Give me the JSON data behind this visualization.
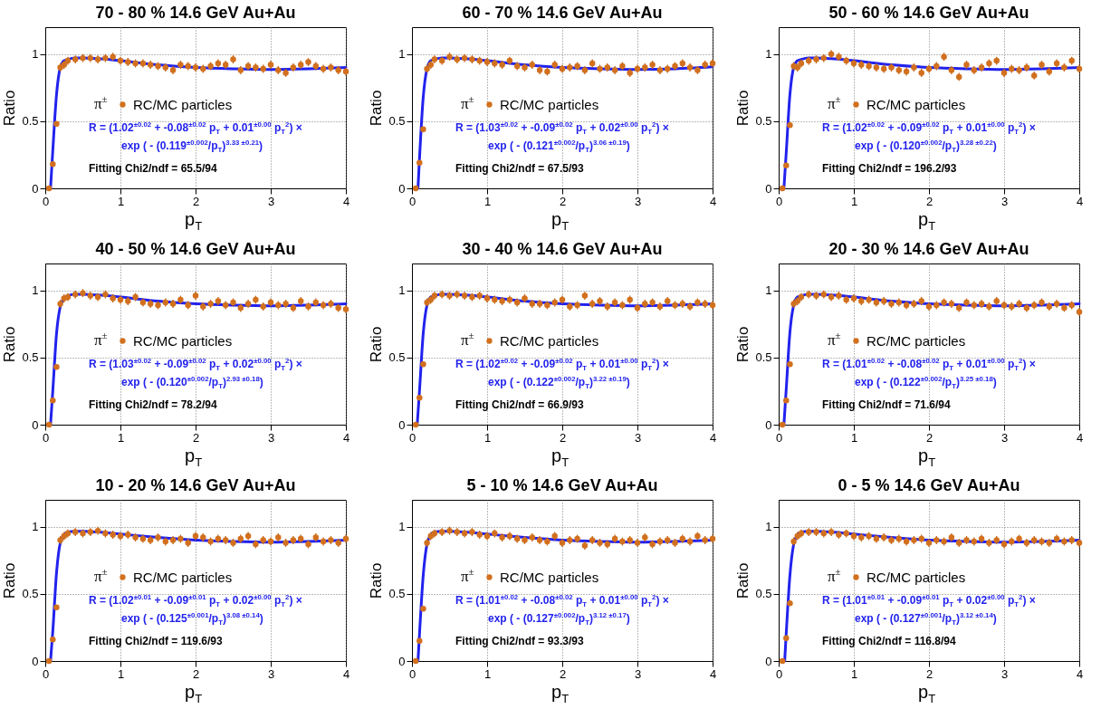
{
  "chart_data": [
    {
      "type": "scatter",
      "title": "70 - 80 % 14.6 GeV Au+Au",
      "xlabel": "p$_{T}$",
      "ylabel": "Ratio",
      "legend_title": "π$^{±}$",
      "legend": "left",
      "grid": true,
      "xlim": [
        0,
        4
      ],
      "ylim": [
        0,
        1.2
      ],
      "xticks": [
        0,
        1,
        2,
        3,
        4
      ],
      "yticks": [
        0,
        0.5,
        1
      ],
      "x": [
        0.05,
        0.1,
        0.15,
        0.2,
        0.25,
        0.3,
        0.4,
        0.5,
        0.6,
        0.7,
        0.8,
        0.9,
        1.0,
        1.1,
        1.2,
        1.3,
        1.4,
        1.5,
        1.6,
        1.7,
        1.8,
        1.9,
        2.0,
        2.1,
        2.2,
        2.3,
        2.4,
        2.5,
        2.6,
        2.7,
        2.8,
        2.9,
        3.0,
        3.1,
        3.2,
        3.3,
        3.4,
        3.5,
        3.6,
        3.7,
        3.8,
        3.9,
        4.0
      ],
      "annotations": [
        "R = (1.02$^{±0.02}$ + -0.08$^{±0.02}$ p$_{T}$ + 0.01$^{±0.00}$ p$_{T}$$^{2}$) ×",
        "exp ( - (0.119$^{±0.002}$/p$_{T}$)$^{3.33 ±0.21}$)",
        "Fitting Chi2/ndf = 65.5/94"
      ],
      "series": [
        {
          "name": "RC/MC particles",
          "color": "#d2701e",
          "marker": "circle",
          "values": [
            0,
            0.18,
            0.48,
            0.9,
            0.92,
            0.95,
            0.96,
            0.97,
            0.97,
            0.96,
            0.97,
            0.98,
            0.95,
            0.94,
            0.93,
            0.93,
            0.92,
            0.91,
            0.9,
            0.88,
            0.92,
            0.91,
            0.9,
            0.89,
            0.91,
            0.93,
            0.92,
            0.96,
            0.88,
            0.91,
            0.9,
            0.89,
            0.92,
            0.88,
            0.86,
            0.9,
            0.92,
            0.94,
            0.91,
            0.89,
            0.9,
            0.88,
            0.87
          ],
          "errors": [
            null,
            null,
            null,
            0.03,
            0.03,
            0.03,
            0.03,
            0.03,
            0.03,
            0.03,
            0.03,
            0.03,
            0.03,
            0.03,
            0.03,
            0.03,
            0.03,
            0.03,
            0.03,
            0.03,
            0.03,
            0.03,
            0.03,
            0.03,
            0.03,
            0.03,
            0.03,
            0.03,
            0.03,
            0.03,
            0.03,
            0.03,
            0.03,
            0.03,
            0.03,
            0.03,
            0.03,
            0.03,
            0.03,
            0.03,
            0.03,
            0.03,
            0.03
          ]
        },
        {
          "type": "line",
          "color": "#2222ee",
          "marker": "none",
          "x": [
            0.07,
            0.1,
            0.15,
            0.2,
            0.25,
            0.3,
            0.4,
            0.5,
            0.7,
            1,
            1.5,
            2,
            2.5,
            3,
            3.5,
            4
          ],
          "values": [
            0,
            0.28,
            0.7,
            0.9,
            0.95,
            0.96,
            0.97,
            0.97,
            0.965,
            0.95,
            0.92,
            0.9,
            0.89,
            0.885,
            0.89,
            0.9
          ]
        }
      ]
    },
    {
      "type": "scatter",
      "title": "60 - 70 % 14.6 GeV Au+Au",
      "xlabel": "p$_{T}$",
      "ylabel": "Ratio",
      "legend_title": "π$^{±}$",
      "legend": "left",
      "grid": true,
      "xlim": [
        0,
        4
      ],
      "ylim": [
        0,
        1.2
      ],
      "xticks": [
        0,
        1,
        2,
        3,
        4
      ],
      "yticks": [
        0,
        0.5,
        1
      ],
      "x": [
        0.05,
        0.1,
        0.15,
        0.2,
        0.25,
        0.3,
        0.4,
        0.5,
        0.6,
        0.7,
        0.8,
        0.9,
        1.0,
        1.1,
        1.2,
        1.3,
        1.4,
        1.5,
        1.6,
        1.7,
        1.8,
        1.9,
        2.0,
        2.1,
        2.2,
        2.3,
        2.4,
        2.5,
        2.6,
        2.7,
        2.8,
        2.9,
        3.0,
        3.1,
        3.2,
        3.3,
        3.4,
        3.5,
        3.6,
        3.7,
        3.8,
        3.9,
        4.0
      ],
      "annotations": [
        "R = (1.03$^{±0.02}$ + -0.09$^{±0.02}$ p$_{T}$ + 0.02$^{±0.00}$ p$_{T}$$^{2}$) ×",
        "exp ( - (0.121$^{±0.002}$/p$_{T}$)$^{3.06 ±0.19}$)",
        "Fitting Chi2/ndf = 67.5/93"
      ],
      "series": [
        {
          "name": "RC/MC particles",
          "color": "#d2701e",
          "marker": "circle",
          "values": [
            0,
            0.19,
            0.44,
            0.89,
            0.92,
            0.96,
            0.95,
            0.98,
            0.96,
            0.97,
            0.96,
            0.95,
            0.94,
            0.93,
            0.92,
            0.95,
            0.91,
            0.9,
            0.92,
            0.88,
            0.87,
            0.92,
            0.89,
            0.9,
            0.91,
            0.88,
            0.93,
            0.89,
            0.9,
            0.88,
            0.91,
            0.86,
            0.89,
            0.9,
            0.92,
            0.88,
            0.89,
            0.91,
            0.93,
            0.9,
            0.88,
            0.92,
            0.93
          ],
          "errors": [
            null,
            null,
            null,
            0.03,
            0.03,
            0.03,
            0.03,
            0.03,
            0.03,
            0.03,
            0.03,
            0.03,
            0.03,
            0.03,
            0.03,
            0.03,
            0.03,
            0.03,
            0.03,
            0.03,
            0.03,
            0.03,
            0.03,
            0.03,
            0.03,
            0.03,
            0.03,
            0.03,
            0.03,
            0.03,
            0.03,
            0.03,
            0.03,
            0.03,
            0.03,
            0.03,
            0.03,
            0.03,
            0.03,
            0.03,
            0.03,
            0.03,
            0.03
          ]
        },
        {
          "type": "line",
          "color": "#2222ee",
          "marker": "none",
          "x": [
            0.08,
            0.1,
            0.15,
            0.2,
            0.25,
            0.3,
            0.4,
            0.5,
            0.7,
            1,
            1.5,
            2,
            2.5,
            3,
            3.5,
            4
          ],
          "values": [
            0,
            0.22,
            0.68,
            0.89,
            0.95,
            0.96,
            0.97,
            0.97,
            0.965,
            0.95,
            0.92,
            0.9,
            0.89,
            0.885,
            0.89,
            0.905
          ]
        }
      ]
    },
    {
      "type": "scatter",
      "title": "50 - 60 % 14.6 GeV Au+Au",
      "xlabel": "p$_{T}$",
      "ylabel": "Ratio",
      "legend_title": "π$^{±}$",
      "legend": "left",
      "grid": true,
      "xlim": [
        0,
        4
      ],
      "ylim": [
        0,
        1.2
      ],
      "xticks": [
        0,
        1,
        2,
        3,
        4
      ],
      "yticks": [
        0,
        0.5,
        1
      ],
      "x": [
        0.05,
        0.1,
        0.15,
        0.2,
        0.25,
        0.3,
        0.4,
        0.5,
        0.6,
        0.7,
        0.8,
        0.9,
        1.0,
        1.1,
        1.2,
        1.3,
        1.4,
        1.5,
        1.6,
        1.7,
        1.8,
        1.9,
        2.0,
        2.1,
        2.2,
        2.3,
        2.4,
        2.5,
        2.6,
        2.7,
        2.8,
        2.9,
        3.0,
        3.1,
        3.2,
        3.3,
        3.4,
        3.5,
        3.6,
        3.7,
        3.8,
        3.9,
        4.0
      ],
      "annotations": [
        "R = (1.02$^{±0.02}$ + -0.09$^{±0.02}$ p$_{T}$ + 0.01$^{±0.00}$ p$_{T}$$^{2}$) ×",
        "exp ( - (0.120$^{±0.002}$/p$_{T}$)$^{3.28 ±0.22}$)",
        "Fitting Chi2/ndf = 196.2/93"
      ],
      "series": [
        {
          "name": "RC/MC particles",
          "color": "#d2701e",
          "marker": "circle",
          "values": [
            0,
            0.17,
            0.47,
            0.91,
            0.9,
            0.93,
            0.95,
            0.96,
            0.97,
            1.0,
            0.98,
            0.95,
            0.93,
            0.92,
            0.91,
            0.9,
            0.89,
            0.9,
            0.88,
            0.87,
            0.9,
            0.86,
            0.89,
            0.91,
            0.98,
            0.88,
            0.83,
            0.92,
            0.88,
            0.9,
            0.93,
            0.95,
            0.86,
            0.89,
            0.88,
            0.9,
            0.84,
            0.92,
            0.87,
            0.93,
            0.9,
            0.95,
            0.89
          ],
          "errors": [
            null,
            null,
            null,
            0.03,
            0.03,
            0.03,
            0.03,
            0.03,
            0.03,
            0.03,
            0.03,
            0.03,
            0.03,
            0.03,
            0.03,
            0.03,
            0.03,
            0.03,
            0.03,
            0.03,
            0.03,
            0.03,
            0.03,
            0.03,
            0.03,
            0.03,
            0.03,
            0.03,
            0.03,
            0.03,
            0.03,
            0.03,
            0.03,
            0.03,
            0.03,
            0.03,
            0.03,
            0.03,
            0.03,
            0.03,
            0.03,
            0.03,
            0.03
          ]
        },
        {
          "type": "line",
          "color": "#2222ee",
          "marker": "none",
          "x": [
            0.07,
            0.1,
            0.15,
            0.2,
            0.25,
            0.3,
            0.4,
            0.5,
            0.7,
            1,
            1.5,
            2,
            2.5,
            3,
            3.5,
            4
          ],
          "values": [
            0,
            0.26,
            0.7,
            0.9,
            0.95,
            0.96,
            0.97,
            0.97,
            0.965,
            0.95,
            0.92,
            0.9,
            0.89,
            0.885,
            0.89,
            0.9
          ]
        }
      ]
    },
    {
      "type": "scatter",
      "title": "40 - 50 % 14.6 GeV Au+Au",
      "xlabel": "p$_{T}$",
      "ylabel": "Ratio",
      "legend_title": "π$^{±}$",
      "legend": "left",
      "grid": true,
      "xlim": [
        0,
        4
      ],
      "ylim": [
        0,
        1.2
      ],
      "xticks": [
        0,
        1,
        2,
        3,
        4
      ],
      "yticks": [
        0,
        0.5,
        1
      ],
      "x": [
        0.05,
        0.1,
        0.15,
        0.2,
        0.25,
        0.3,
        0.4,
        0.5,
        0.6,
        0.7,
        0.8,
        0.9,
        1.0,
        1.1,
        1.2,
        1.3,
        1.4,
        1.5,
        1.6,
        1.7,
        1.8,
        1.9,
        2.0,
        2.1,
        2.2,
        2.3,
        2.4,
        2.5,
        2.6,
        2.7,
        2.8,
        2.9,
        3.0,
        3.1,
        3.2,
        3.3,
        3.4,
        3.5,
        3.6,
        3.7,
        3.8,
        3.9,
        4.0
      ],
      "annotations": [
        "R = (1.03$^{±0.02}$ + -0.09$^{±0.02}$ p$_{T}$ + 0.02$^{±0.00}$ p$_{T}$$^{2}$) ×",
        "exp ( - (0.120$^{±0.002}$/p$_{T}$)$^{2.93 ±0.18}$)",
        "Fitting Chi2/ndf = 78.2/94"
      ],
      "series": [
        {
          "name": "RC/MC particles",
          "color": "#d2701e",
          "marker": "circle",
          "values": [
            0,
            0.18,
            0.43,
            0.9,
            0.94,
            0.95,
            0.97,
            0.98,
            0.96,
            0.95,
            0.97,
            0.94,
            0.93,
            0.92,
            0.95,
            0.91,
            0.9,
            0.89,
            0.91,
            0.9,
            0.93,
            0.89,
            0.96,
            0.88,
            0.9,
            0.92,
            0.89,
            0.91,
            0.87,
            0.9,
            0.93,
            0.88,
            0.91,
            0.89,
            0.9,
            0.87,
            0.92,
            0.88,
            0.91,
            0.89,
            0.9,
            0.87,
            0.86
          ],
          "errors": [
            null,
            null,
            null,
            0.03,
            0.03,
            0.03,
            0.03,
            0.03,
            0.03,
            0.03,
            0.03,
            0.03,
            0.03,
            0.03,
            0.03,
            0.03,
            0.03,
            0.03,
            0.03,
            0.03,
            0.03,
            0.03,
            0.03,
            0.03,
            0.03,
            0.03,
            0.03,
            0.03,
            0.03,
            0.03,
            0.03,
            0.03,
            0.03,
            0.03,
            0.03,
            0.03,
            0.03,
            0.03,
            0.03,
            0.03,
            0.03,
            0.03,
            0.03
          ]
        },
        {
          "type": "line",
          "color": "#2222ee",
          "marker": "none",
          "x": [
            0.07,
            0.1,
            0.15,
            0.2,
            0.25,
            0.3,
            0.4,
            0.5,
            0.7,
            1,
            1.5,
            2,
            2.5,
            3,
            3.5,
            4
          ],
          "values": [
            0,
            0.25,
            0.68,
            0.88,
            0.94,
            0.96,
            0.97,
            0.97,
            0.965,
            0.95,
            0.92,
            0.9,
            0.89,
            0.885,
            0.89,
            0.9
          ]
        }
      ]
    },
    {
      "type": "scatter",
      "title": "30 - 40 % 14.6 GeV Au+Au",
      "xlabel": "p$_{T}$",
      "ylabel": "Ratio",
      "legend_title": "π$^{±}$",
      "legend": "left",
      "grid": true,
      "xlim": [
        0,
        4
      ],
      "ylim": [
        0,
        1.2
      ],
      "xticks": [
        0,
        1,
        2,
        3,
        4
      ],
      "yticks": [
        0,
        0.5,
        1
      ],
      "x": [
        0.05,
        0.1,
        0.15,
        0.2,
        0.25,
        0.3,
        0.4,
        0.5,
        0.6,
        0.7,
        0.8,
        0.9,
        1.0,
        1.1,
        1.2,
        1.3,
        1.4,
        1.5,
        1.6,
        1.7,
        1.8,
        1.9,
        2.0,
        2.1,
        2.2,
        2.3,
        2.4,
        2.5,
        2.6,
        2.7,
        2.8,
        2.9,
        3.0,
        3.1,
        3.2,
        3.3,
        3.4,
        3.5,
        3.6,
        3.7,
        3.8,
        3.9,
        4.0
      ],
      "annotations": [
        "R = (1.02$^{±0.02}$ + -0.09$^{±0.02}$ p$_{T}$ + 0.01$^{±0.00}$ p$_{T}$$^{2}$) ×",
        "exp ( - (0.122$^{±0.002}$/p$_{T}$)$^{3.22 ±0.19}$)",
        "Fitting Chi2/ndf = 66.9/93"
      ],
      "series": [
        {
          "name": "RC/MC particles",
          "color": "#d2701e",
          "marker": "circle",
          "values": [
            0,
            0.2,
            0.45,
            0.91,
            0.93,
            0.96,
            0.97,
            0.96,
            0.97,
            0.96,
            0.95,
            0.96,
            0.94,
            0.93,
            0.92,
            0.93,
            0.91,
            0.94,
            0.9,
            0.9,
            0.89,
            0.91,
            0.93,
            0.88,
            0.89,
            0.96,
            0.9,
            0.92,
            0.88,
            0.91,
            0.89,
            0.93,
            0.87,
            0.9,
            0.91,
            0.88,
            0.92,
            0.89,
            0.9,
            0.88,
            0.91,
            0.9,
            0.89
          ],
          "errors": [
            null,
            null,
            null,
            0.03,
            0.03,
            0.03,
            0.03,
            0.03,
            0.03,
            0.03,
            0.03,
            0.03,
            0.03,
            0.03,
            0.03,
            0.03,
            0.03,
            0.03,
            0.03,
            0.03,
            0.03,
            0.03,
            0.03,
            0.03,
            0.03,
            0.03,
            0.03,
            0.03,
            0.03,
            0.03,
            0.03,
            0.03,
            0.03,
            0.03,
            0.03,
            0.03,
            0.03,
            0.03,
            0.03,
            0.03,
            0.03,
            0.03,
            0.03
          ]
        },
        {
          "type": "line",
          "color": "#2222ee",
          "marker": "none",
          "x": [
            0.07,
            0.1,
            0.15,
            0.2,
            0.25,
            0.3,
            0.4,
            0.5,
            0.7,
            1,
            1.5,
            2,
            2.5,
            3,
            3.5,
            4
          ],
          "values": [
            0,
            0.25,
            0.68,
            0.89,
            0.95,
            0.96,
            0.97,
            0.97,
            0.965,
            0.95,
            0.92,
            0.9,
            0.89,
            0.885,
            0.89,
            0.9
          ]
        }
      ]
    },
    {
      "type": "scatter",
      "title": "20 - 30 % 14.6 GeV Au+Au",
      "xlabel": "p$_{T}$",
      "ylabel": "Ratio",
      "legend_title": "π$^{±}$",
      "legend": "left",
      "grid": true,
      "xlim": [
        0,
        4
      ],
      "ylim": [
        0,
        1.2
      ],
      "xticks": [
        0,
        1,
        2,
        3,
        4
      ],
      "yticks": [
        0,
        0.5,
        1
      ],
      "x": [
        0.05,
        0.1,
        0.15,
        0.2,
        0.25,
        0.3,
        0.4,
        0.5,
        0.6,
        0.7,
        0.8,
        0.9,
        1.0,
        1.1,
        1.2,
        1.3,
        1.4,
        1.5,
        1.6,
        1.7,
        1.8,
        1.9,
        2.0,
        2.1,
        2.2,
        2.3,
        2.4,
        2.5,
        2.6,
        2.7,
        2.8,
        2.9,
        3.0,
        3.1,
        3.2,
        3.3,
        3.4,
        3.5,
        3.6,
        3.7,
        3.8,
        3.9,
        4.0
      ],
      "annotations": [
        "R = (1.01$^{±0.02}$ + -0.08$^{±0.02}$ p$_{T}$ + 0.01$^{±0.00}$ p$_{T}$$^{2}$) ×",
        "exp ( - (0.122$^{±0.002}$/p$_{T}$)$^{3.25 ±0.18}$)",
        "Fitting Chi2/ndf = 71.6/94"
      ],
      "series": [
        {
          "name": "RC/MC particles",
          "color": "#d2701e",
          "marker": "circle",
          "values": [
            0,
            0.18,
            0.45,
            0.9,
            0.92,
            0.95,
            0.97,
            0.96,
            0.97,
            0.95,
            0.96,
            0.93,
            0.94,
            0.92,
            0.93,
            0.91,
            0.92,
            0.9,
            0.91,
            0.89,
            0.9,
            0.92,
            0.88,
            0.89,
            0.91,
            0.9,
            0.87,
            0.91,
            0.89,
            0.9,
            0.88,
            0.92,
            0.89,
            0.88,
            0.9,
            0.87,
            0.89,
            0.91,
            0.88,
            0.9,
            0.87,
            0.89,
            0.84
          ],
          "errors": [
            null,
            null,
            null,
            0.03,
            0.03,
            0.03,
            0.03,
            0.03,
            0.03,
            0.03,
            0.03,
            0.03,
            0.03,
            0.03,
            0.03,
            0.03,
            0.03,
            0.03,
            0.03,
            0.03,
            0.03,
            0.03,
            0.03,
            0.03,
            0.03,
            0.03,
            0.03,
            0.03,
            0.03,
            0.03,
            0.03,
            0.03,
            0.03,
            0.03,
            0.03,
            0.03,
            0.03,
            0.03,
            0.03,
            0.03,
            0.03,
            0.03,
            0.03
          ]
        },
        {
          "type": "line",
          "color": "#2222ee",
          "marker": "none",
          "x": [
            0.07,
            0.1,
            0.15,
            0.2,
            0.25,
            0.3,
            0.4,
            0.5,
            0.7,
            1,
            1.5,
            2,
            2.5,
            3,
            3.5,
            4
          ],
          "values": [
            0,
            0.26,
            0.69,
            0.89,
            0.95,
            0.96,
            0.97,
            0.97,
            0.965,
            0.95,
            0.92,
            0.9,
            0.89,
            0.885,
            0.89,
            0.9
          ]
        }
      ]
    },
    {
      "type": "scatter",
      "title": "10 - 20 % 14.6 GeV Au+Au",
      "xlabel": "p$_{T}$",
      "ylabel": "Ratio",
      "legend_title": "π$^{±}$",
      "legend": "left",
      "grid": true,
      "xlim": [
        0,
        4
      ],
      "ylim": [
        0,
        1.2
      ],
      "xticks": [
        0,
        1,
        2,
        3,
        4
      ],
      "yticks": [
        0,
        0.5,
        1
      ],
      "x": [
        0.05,
        0.1,
        0.15,
        0.2,
        0.25,
        0.3,
        0.4,
        0.5,
        0.6,
        0.7,
        0.8,
        0.9,
        1.0,
        1.1,
        1.2,
        1.3,
        1.4,
        1.5,
        1.6,
        1.7,
        1.8,
        1.9,
        2.0,
        2.1,
        2.2,
        2.3,
        2.4,
        2.5,
        2.6,
        2.7,
        2.8,
        2.9,
        3.0,
        3.1,
        3.2,
        3.3,
        3.4,
        3.5,
        3.6,
        3.7,
        3.8,
        3.9,
        4.0
      ],
      "annotations": [
        "R = (1.02$^{±0.01}$ + -0.09$^{±0.01}$ p$_{T}$ + 0.02$^{±0.00}$ p$_{T}$$^{2}$) ×",
        "exp ( - (0.125$^{±0.001}$/p$_{T}$)$^{3.08 ±0.14}$)",
        "Fitting Chi2/ndf = 119.6/93"
      ],
      "series": [
        {
          "name": "RC/MC particles",
          "color": "#d2701e",
          "marker": "circle",
          "values": [
            0,
            0.16,
            0.4,
            0.9,
            0.93,
            0.95,
            0.96,
            0.95,
            0.96,
            0.97,
            0.95,
            0.94,
            0.93,
            0.94,
            0.92,
            0.91,
            0.9,
            0.92,
            0.89,
            0.9,
            0.91,
            0.88,
            0.93,
            0.92,
            0.89,
            0.91,
            0.9,
            0.88,
            0.91,
            0.93,
            0.87,
            0.9,
            0.89,
            0.92,
            0.88,
            0.9,
            0.91,
            0.87,
            0.92,
            0.89,
            0.9,
            0.88,
            0.91
          ],
          "errors": [
            null,
            null,
            null,
            0.03,
            0.03,
            0.03,
            0.03,
            0.03,
            0.03,
            0.03,
            0.03,
            0.03,
            0.03,
            0.03,
            0.03,
            0.03,
            0.03,
            0.03,
            0.03,
            0.03,
            0.03,
            0.03,
            0.03,
            0.03,
            0.03,
            0.03,
            0.03,
            0.03,
            0.03,
            0.03,
            0.03,
            0.03,
            0.03,
            0.03,
            0.03,
            0.03,
            0.03,
            0.03,
            0.03,
            0.03,
            0.03,
            0.03,
            0.03
          ]
        },
        {
          "type": "line",
          "color": "#2222ee",
          "marker": "none",
          "x": [
            0.07,
            0.1,
            0.15,
            0.2,
            0.25,
            0.3,
            0.4,
            0.5,
            0.7,
            1,
            1.5,
            2,
            2.5,
            3,
            3.5,
            4
          ],
          "values": [
            0,
            0.22,
            0.66,
            0.88,
            0.94,
            0.96,
            0.965,
            0.965,
            0.96,
            0.945,
            0.92,
            0.9,
            0.89,
            0.885,
            0.89,
            0.9
          ]
        }
      ]
    },
    {
      "type": "scatter",
      "title": "5 - 10 % 14.6 GeV Au+Au",
      "xlabel": "p$_{T}$",
      "ylabel": "Ratio",
      "legend_title": "π$^{±}$",
      "legend": "left",
      "grid": true,
      "xlim": [
        0,
        4
      ],
      "ylim": [
        0,
        1.2
      ],
      "xticks": [
        0,
        1,
        2,
        3,
        4
      ],
      "yticks": [
        0,
        0.5,
        1
      ],
      "x": [
        0.05,
        0.1,
        0.15,
        0.2,
        0.25,
        0.3,
        0.4,
        0.5,
        0.6,
        0.7,
        0.8,
        0.9,
        1.0,
        1.1,
        1.2,
        1.3,
        1.4,
        1.5,
        1.6,
        1.7,
        1.8,
        1.9,
        2.0,
        2.1,
        2.2,
        2.3,
        2.4,
        2.5,
        2.6,
        2.7,
        2.8,
        2.9,
        3.0,
        3.1,
        3.2,
        3.3,
        3.4,
        3.5,
        3.6,
        3.7,
        3.8,
        3.9,
        4.0
      ],
      "annotations": [
        "R = (1.01$^{±0.02}$ + -0.08$^{±0.02}$ p$_{T}$ + 0.01$^{±0.00}$ p$_{T}$$^{2}$) ×",
        "exp ( - (0.127$^{±0.002}$/p$_{T}$)$^{3.12 ±0.17}$)",
        "Fitting Chi2/ndf = 93.3/93"
      ],
      "series": [
        {
          "name": "RC/MC particles",
          "color": "#d2701e",
          "marker": "circle",
          "values": [
            0,
            0.15,
            0.39,
            0.88,
            0.93,
            0.95,
            0.96,
            0.97,
            0.96,
            0.95,
            0.96,
            0.94,
            0.93,
            0.95,
            0.92,
            0.93,
            0.91,
            0.9,
            0.92,
            0.9,
            0.89,
            0.93,
            0.88,
            0.9,
            0.91,
            0.86,
            0.9,
            0.88,
            0.87,
            0.91,
            0.89,
            0.9,
            0.88,
            0.92,
            0.87,
            0.89,
            0.9,
            0.88,
            0.91,
            0.89,
            0.93,
            0.9,
            0.91
          ],
          "errors": [
            null,
            null,
            null,
            0.03,
            0.03,
            0.03,
            0.03,
            0.03,
            0.03,
            0.03,
            0.03,
            0.03,
            0.03,
            0.03,
            0.03,
            0.03,
            0.03,
            0.03,
            0.03,
            0.03,
            0.03,
            0.03,
            0.03,
            0.03,
            0.03,
            0.03,
            0.03,
            0.03,
            0.03,
            0.03,
            0.03,
            0.03,
            0.03,
            0.03,
            0.03,
            0.03,
            0.03,
            0.03,
            0.03,
            0.03,
            0.03,
            0.03,
            0.03
          ]
        },
        {
          "type": "line",
          "color": "#2222ee",
          "marker": "none",
          "x": [
            0.08,
            0.1,
            0.15,
            0.2,
            0.25,
            0.3,
            0.4,
            0.5,
            0.7,
            1,
            1.5,
            2,
            2.5,
            3,
            3.5,
            4
          ],
          "values": [
            0,
            0.2,
            0.64,
            0.87,
            0.94,
            0.96,
            0.965,
            0.965,
            0.96,
            0.945,
            0.92,
            0.9,
            0.89,
            0.885,
            0.89,
            0.9
          ]
        }
      ]
    },
    {
      "type": "scatter",
      "title": "0 - 5 % 14.6 GeV Au+Au",
      "xlabel": "p$_{T}$",
      "ylabel": "Ratio",
      "legend_title": "π$^{±}$",
      "legend": "left",
      "grid": true,
      "xlim": [
        0,
        4
      ],
      "ylim": [
        0,
        1.2
      ],
      "xticks": [
        0,
        1,
        2,
        3,
        4
      ],
      "yticks": [
        0,
        0.5,
        1
      ],
      "x": [
        0.05,
        0.1,
        0.15,
        0.2,
        0.25,
        0.3,
        0.4,
        0.5,
        0.6,
        0.7,
        0.8,
        0.9,
        1.0,
        1.1,
        1.2,
        1.3,
        1.4,
        1.5,
        1.6,
        1.7,
        1.8,
        1.9,
        2.0,
        2.1,
        2.2,
        2.3,
        2.4,
        2.5,
        2.6,
        2.7,
        2.8,
        2.9,
        3.0,
        3.1,
        3.2,
        3.3,
        3.4,
        3.5,
        3.6,
        3.7,
        3.8,
        3.9,
        4.0
      ],
      "annotations": [
        "R = (1.01$^{±0.01}$ + -0.09$^{±0.01}$ p$_{T}$ + 0.02$^{±0.00}$ p$_{T}$$^{2}$) ×",
        "exp ( - (0.127$^{±0.001}$/p$_{T}$)$^{3.12 ±0.14}$)",
        "Fitting Chi2/ndf = 116.8/94"
      ],
      "series": [
        {
          "name": "RC/MC particles",
          "color": "#d2701e",
          "marker": "circle",
          "values": [
            0,
            0.17,
            0.43,
            0.89,
            0.93,
            0.95,
            0.96,
            0.96,
            0.95,
            0.96,
            0.94,
            0.95,
            0.93,
            0.92,
            0.93,
            0.91,
            0.92,
            0.9,
            0.91,
            0.89,
            0.9,
            0.91,
            0.88,
            0.9,
            0.89,
            0.92,
            0.88,
            0.9,
            0.89,
            0.91,
            0.88,
            0.9,
            0.87,
            0.89,
            0.91,
            0.88,
            0.9,
            0.89,
            0.88,
            0.91,
            0.89,
            0.9,
            0.88
          ],
          "errors": [
            null,
            null,
            null,
            0.03,
            0.03,
            0.03,
            0.03,
            0.03,
            0.03,
            0.03,
            0.03,
            0.03,
            0.03,
            0.03,
            0.03,
            0.03,
            0.03,
            0.03,
            0.03,
            0.03,
            0.03,
            0.03,
            0.03,
            0.03,
            0.03,
            0.03,
            0.03,
            0.03,
            0.03,
            0.03,
            0.03,
            0.03,
            0.03,
            0.03,
            0.03,
            0.03,
            0.03,
            0.03,
            0.03,
            0.03,
            0.03,
            0.03,
            0.03
          ]
        },
        {
          "type": "line",
          "color": "#2222ee",
          "marker": "none",
          "x": [
            0.08,
            0.1,
            0.15,
            0.2,
            0.25,
            0.3,
            0.4,
            0.5,
            0.7,
            1,
            1.5,
            2,
            2.5,
            3,
            3.5,
            4
          ],
          "values": [
            0,
            0.2,
            0.64,
            0.87,
            0.94,
            0.96,
            0.965,
            0.965,
            0.96,
            0.945,
            0.92,
            0.9,
            0.89,
            0.885,
            0.89,
            0.9
          ]
        }
      ]
    }
  ]
}
